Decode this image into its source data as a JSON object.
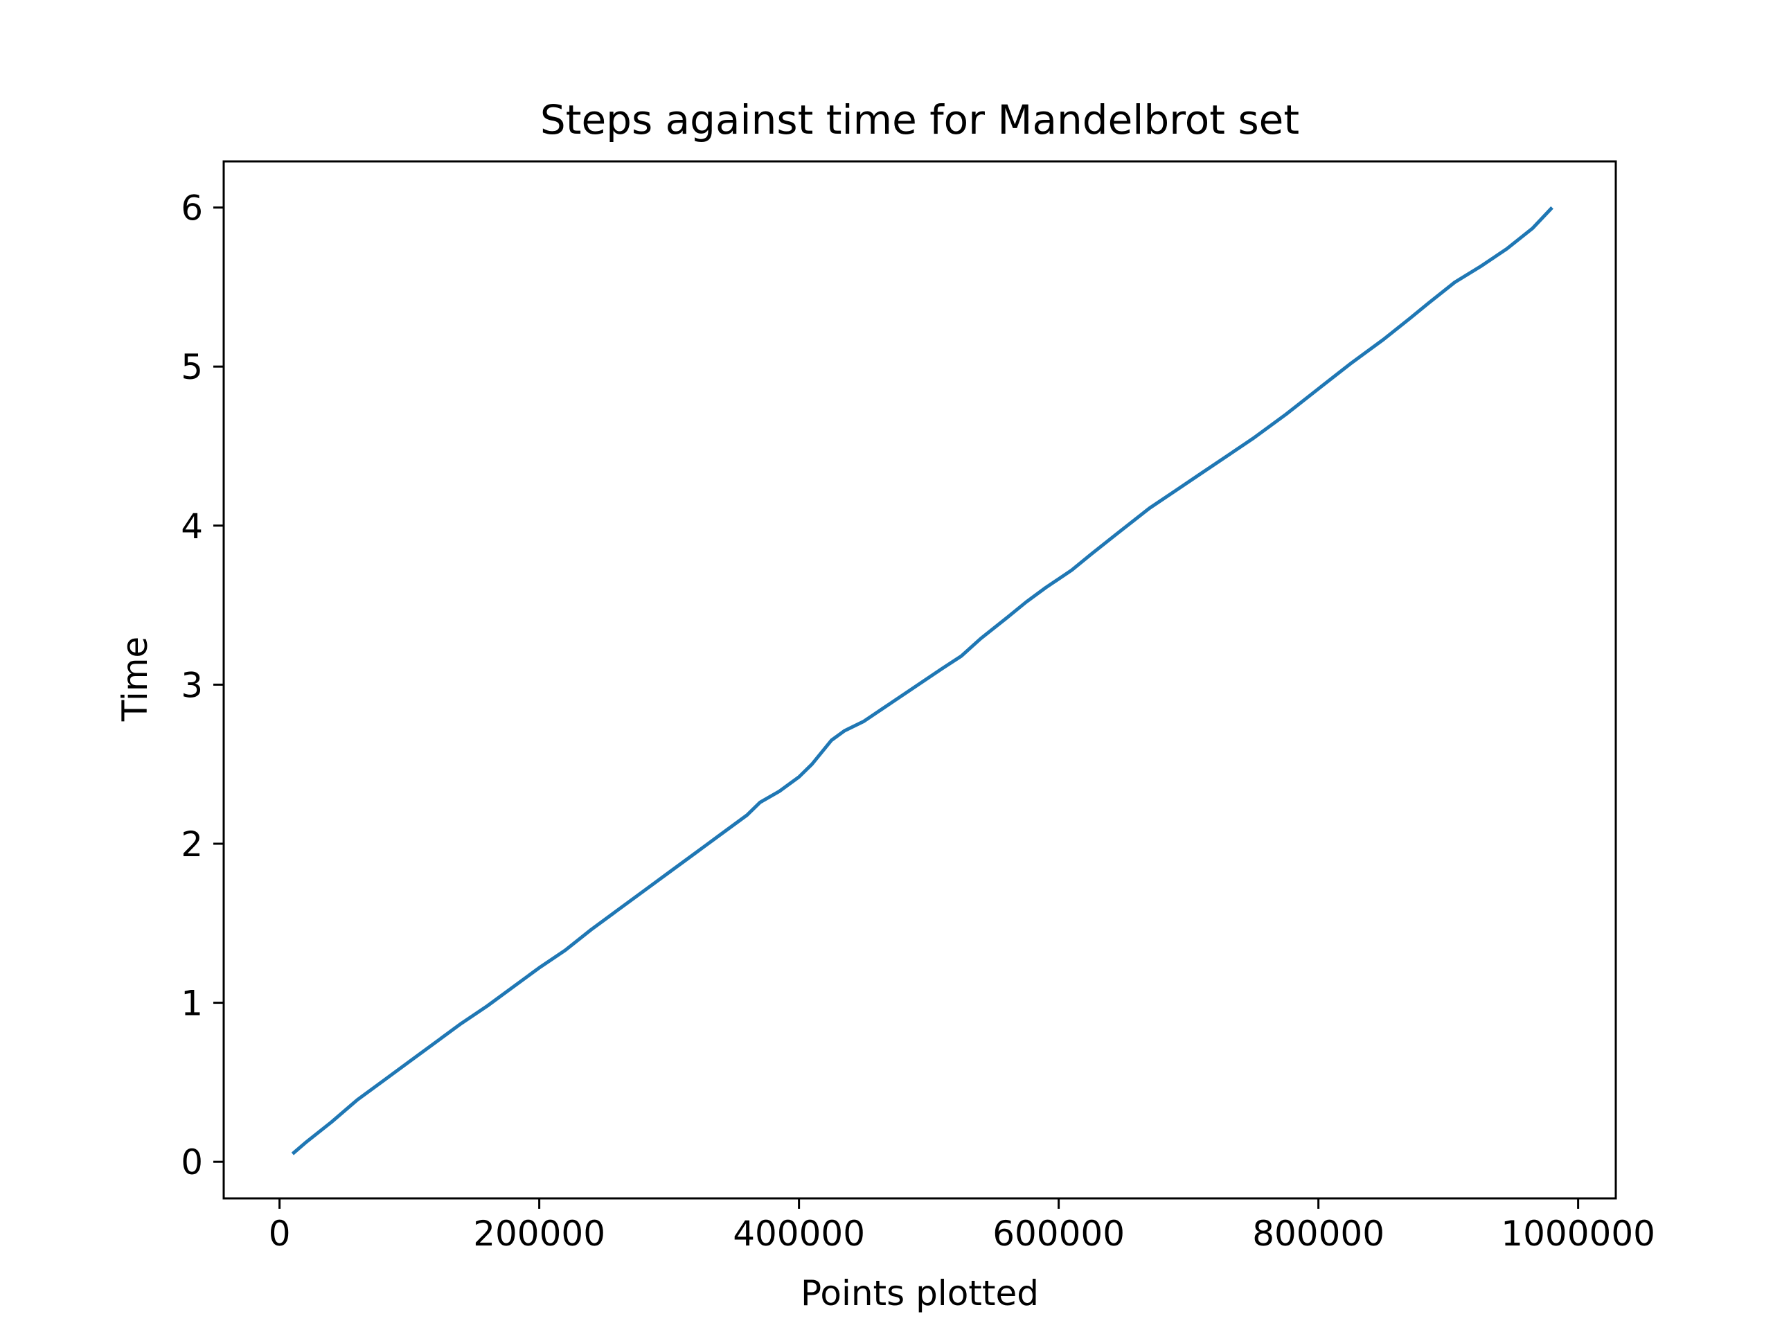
{
  "chart_data": {
    "type": "line",
    "title": "Steps against time for Mandelbrot set",
    "xlabel": "Points plotted",
    "ylabel": "Time",
    "xlim": [
      -43000,
      1029000
    ],
    "ylim": [
      -0.23,
      6.29
    ],
    "x_ticks": [
      0,
      200000,
      400000,
      600000,
      800000,
      1000000
    ],
    "x_tick_labels": [
      "0",
      "200000",
      "400000",
      "600000",
      "800000",
      "1000000"
    ],
    "y_ticks": [
      0,
      1,
      2,
      3,
      4,
      5,
      6
    ],
    "y_tick_labels": [
      "0",
      "1",
      "2",
      "3",
      "4",
      "5",
      "6"
    ],
    "grid": false,
    "legend": "none",
    "line_color": "#1f77b4",
    "series": [
      {
        "x": [
          10000,
          20000,
          40000,
          60000,
          80000,
          100000,
          120000,
          140000,
          160000,
          180000,
          200000,
          220000,
          240000,
          260000,
          280000,
          300000,
          320000,
          340000,
          360000,
          370000,
          385000,
          400000,
          410000,
          425000,
          435000,
          450000,
          470000,
          490000,
          510000,
          525000,
          540000,
          560000,
          575000,
          590000,
          610000,
          625000,
          645000,
          670000,
          690000,
          710000,
          730000,
          750000,
          775000,
          800000,
          825000,
          850000,
          870000,
          885000,
          905000,
          925000,
          945000,
          965000,
          980000
        ],
        "y": [
          0.05,
          0.12,
          0.25,
          0.39,
          0.51,
          0.63,
          0.75,
          0.87,
          0.98,
          1.1,
          1.22,
          1.33,
          1.46,
          1.58,
          1.7,
          1.82,
          1.94,
          2.06,
          2.18,
          2.26,
          2.33,
          2.42,
          2.5,
          2.65,
          2.71,
          2.77,
          2.88,
          2.99,
          3.1,
          3.18,
          3.29,
          3.42,
          3.52,
          3.61,
          3.72,
          3.82,
          3.95,
          4.11,
          4.22,
          4.33,
          4.44,
          4.55,
          4.7,
          4.86,
          5.02,
          5.17,
          5.3,
          5.4,
          5.53,
          5.63,
          5.74,
          5.87,
          6.0
        ]
      }
    ]
  }
}
